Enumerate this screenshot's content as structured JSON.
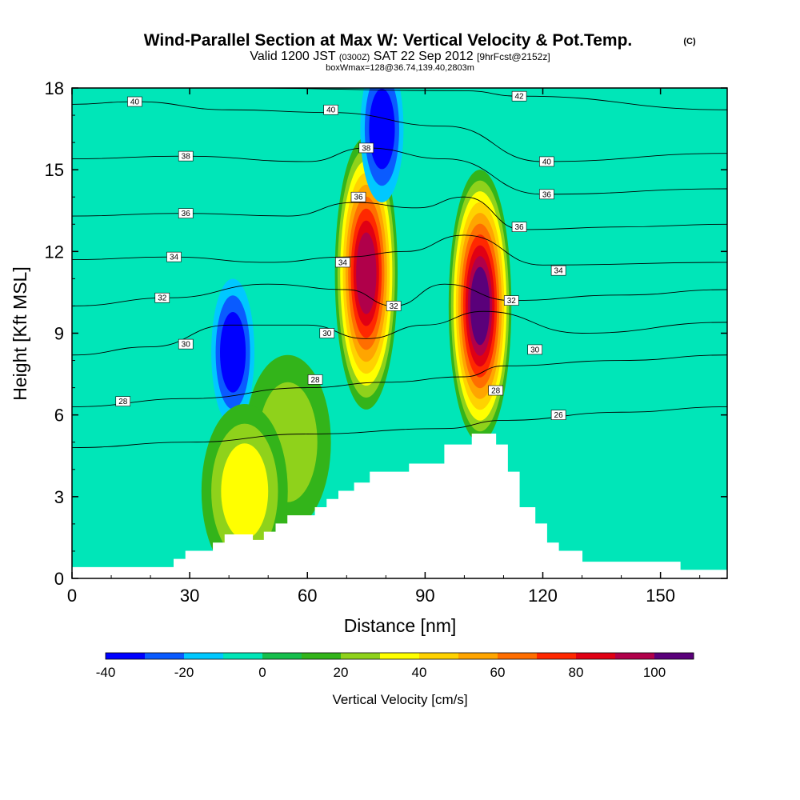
{
  "chart_data": {
    "type": "heatmap",
    "title": "Wind-Parallel Section at Max W: Vertical Velocity & Pot.Temp.",
    "title_mark": "(C)",
    "subtitle": {
      "valid": "Valid 1200 JST",
      "utc": "(0300Z)",
      "date": "SAT 22 Sep 2012",
      "forecast": "[9hrFcst@2152z]"
    },
    "box_info": "boxWmax=128@36.74,139.40,2803m",
    "xlabel": "Distance [nm]",
    "ylabel": "Height [Kft MSL]",
    "xlim": [
      0,
      167
    ],
    "ylim": [
      0,
      18
    ],
    "xticks": [
      0,
      30,
      60,
      90,
      120,
      150
    ],
    "yticks": [
      0,
      3,
      6,
      9,
      12,
      15,
      18
    ],
    "colorbar": {
      "label": "Vertical Velocity [cm/s]",
      "ticks": [
        -40,
        -20,
        0,
        20,
        40,
        60,
        80,
        100
      ],
      "levels": [
        -40,
        -30,
        -20,
        -10,
        0,
        10,
        20,
        30,
        40,
        50,
        60,
        70,
        80,
        90,
        100,
        110
      ],
      "colors": [
        "#0000ff",
        "#0a5bff",
        "#00c8ff",
        "#00e6b8",
        "#16be4c",
        "#33b41a",
        "#8fd21b",
        "#ffff00",
        "#ffd200",
        "#ffa500",
        "#ff6e00",
        "#ff2800",
        "#e00014",
        "#b0004a",
        "#5a007a"
      ]
    },
    "terrain": [
      [
        0,
        0.4
      ],
      [
        26,
        0.4
      ],
      [
        26,
        0.7
      ],
      [
        29,
        0.7
      ],
      [
        29,
        1.0
      ],
      [
        36,
        1.0
      ],
      [
        36,
        1.3
      ],
      [
        39,
        1.3
      ],
      [
        39,
        1.6
      ],
      [
        46,
        1.6
      ],
      [
        46,
        1.4
      ],
      [
        49,
        1.4
      ],
      [
        49,
        1.7
      ],
      [
        52,
        1.7
      ],
      [
        52,
        2.0
      ],
      [
        55,
        2.0
      ],
      [
        55,
        2.3
      ],
      [
        62,
        2.3
      ],
      [
        62,
        2.6
      ],
      [
        65,
        2.6
      ],
      [
        65,
        2.9
      ],
      [
        68,
        2.9
      ],
      [
        68,
        3.2
      ],
      [
        72,
        3.2
      ],
      [
        72,
        3.5
      ],
      [
        76,
        3.5
      ],
      [
        76,
        3.9
      ],
      [
        86,
        3.9
      ],
      [
        86,
        4.2
      ],
      [
        95,
        4.2
      ],
      [
        95,
        4.9
      ],
      [
        102,
        4.9
      ],
      [
        102,
        5.3
      ],
      [
        108,
        5.3
      ],
      [
        108,
        4.9
      ],
      [
        111,
        4.9
      ],
      [
        111,
        3.9
      ],
      [
        114,
        3.9
      ],
      [
        114,
        2.6
      ],
      [
        118,
        2.6
      ],
      [
        118,
        2.0
      ],
      [
        121,
        2.0
      ],
      [
        121,
        1.3
      ],
      [
        124,
        1.3
      ],
      [
        124,
        1.0
      ],
      [
        130,
        1.0
      ],
      [
        130,
        0.6
      ],
      [
        155,
        0.6
      ],
      [
        155,
        0.3
      ],
      [
        167,
        0.3
      ]
    ],
    "theta_contours": [
      {
        "label": "26",
        "points": [
          [
            0,
            4.8
          ],
          [
            30,
            5.0
          ],
          [
            60,
            5.3
          ],
          [
            95,
            5.5
          ],
          [
            110,
            5.8
          ],
          [
            140,
            6.1
          ],
          [
            167,
            6.3
          ]
        ],
        "label_at": [
          124,
          6.0
        ]
      },
      {
        "label": "28",
        "points": [
          [
            0,
            6.3
          ],
          [
            30,
            6.6
          ],
          [
            60,
            7.0
          ],
          [
            80,
            7.2
          ],
          [
            100,
            7.4
          ],
          [
            110,
            7.8
          ],
          [
            140,
            8.0
          ],
          [
            167,
            8.2
          ]
        ],
        "label_at": [
          13,
          6.5
        ]
      },
      {
        "label": "28",
        "points": [],
        "label_at": [
          62,
          7.3
        ]
      },
      {
        "label": "28",
        "points": [],
        "label_at": [
          108,
          6.9
        ]
      },
      {
        "label": "30",
        "points": [
          [
            0,
            8.2
          ],
          [
            20,
            8.5
          ],
          [
            40,
            9.3
          ],
          [
            60,
            9.3
          ],
          [
            75,
            8.8
          ],
          [
            90,
            9.3
          ],
          [
            105,
            9.8
          ],
          [
            130,
            9.0
          ],
          [
            167,
            9.4
          ]
        ],
        "label_at": [
          29,
          8.6
        ]
      },
      {
        "label": "30",
        "points": [],
        "label_at": [
          65,
          9.0
        ]
      },
      {
        "label": "30",
        "points": [],
        "label_at": [
          118,
          8.4
        ]
      },
      {
        "label": "32",
        "points": [
          [
            0,
            10.0
          ],
          [
            25,
            10.3
          ],
          [
            50,
            10.8
          ],
          [
            70,
            10.6
          ],
          [
            82,
            10.0
          ],
          [
            95,
            10.8
          ],
          [
            112,
            10.2
          ],
          [
            140,
            10.4
          ],
          [
            167,
            10.6
          ]
        ],
        "label_at": [
          23,
          10.3
        ]
      },
      {
        "label": "32",
        "points": [],
        "label_at": [
          82,
          10.0
        ]
      },
      {
        "label": "32",
        "points": [],
        "label_at": [
          112,
          10.2
        ]
      },
      {
        "label": "34",
        "points": [
          [
            0,
            11.7
          ],
          [
            25,
            11.8
          ],
          [
            50,
            11.6
          ],
          [
            70,
            11.8
          ],
          [
            85,
            12.0
          ],
          [
            100,
            12.6
          ],
          [
            120,
            11.5
          ],
          [
            167,
            11.6
          ]
        ],
        "label_at": [
          26,
          11.8
        ]
      },
      {
        "label": "34",
        "points": [],
        "label_at": [
          69,
          11.6
        ]
      },
      {
        "label": "34",
        "points": [],
        "label_at": [
          124,
          11.3
        ]
      },
      {
        "label": "36",
        "points": [
          [
            0,
            13.3
          ],
          [
            28,
            13.4
          ],
          [
            55,
            13.3
          ],
          [
            72,
            13.8
          ],
          [
            88,
            13.6
          ],
          [
            100,
            14.0
          ],
          [
            115,
            12.8
          ],
          [
            140,
            12.9
          ],
          [
            167,
            13.0
          ]
        ],
        "label_at": [
          29,
          13.4
        ]
      },
      {
        "label": "36",
        "points": [],
        "label_at": [
          73,
          14.0
        ]
      },
      {
        "label": "36",
        "points": [],
        "label_at": [
          114,
          12.9
        ]
      },
      {
        "label": "36",
        "points": [],
        "label_at": [
          121,
          14.1
        ]
      },
      {
        "label": "38",
        "points": [
          [
            0,
            15.4
          ],
          [
            28,
            15.5
          ],
          [
            60,
            15.3
          ],
          [
            75,
            15.8
          ],
          [
            95,
            15.4
          ],
          [
            120,
            14.1
          ],
          [
            167,
            14.3
          ]
        ],
        "label_at": [
          29,
          15.5
        ]
      },
      {
        "label": "38",
        "points": [],
        "label_at": [
          75,
          15.8
        ]
      },
      {
        "label": "40",
        "points": [
          [
            0,
            17.4
          ],
          [
            16,
            17.5
          ],
          [
            40,
            17.2
          ],
          [
            66,
            17.1
          ],
          [
            95,
            16.6
          ],
          [
            120,
            15.3
          ],
          [
            167,
            15.6
          ]
        ],
        "label_at": [
          16,
          17.5
        ]
      },
      {
        "label": "40",
        "points": [],
        "label_at": [
          66,
          17.2
        ]
      },
      {
        "label": "40",
        "points": [],
        "label_at": [
          121,
          15.3
        ]
      },
      {
        "label": "42",
        "points": [
          [
            0,
            18.0
          ],
          [
            40,
            18.0
          ],
          [
            100,
            17.9
          ],
          [
            114,
            17.7
          ],
          [
            167,
            17.2
          ]
        ],
        "label_at": [
          114,
          17.7
        ]
      }
    ],
    "w_features": [
      {
        "x": 75,
        "y": 11.2,
        "value": 95
      },
      {
        "x": 104,
        "y": 10.0,
        "value": 105
      },
      {
        "x": 41,
        "y": 8.3,
        "value": -35
      },
      {
        "x": 79,
        "y": 16.5,
        "value": -35
      },
      {
        "x": 55,
        "y": 5.0,
        "value": 25
      },
      {
        "x": 44,
        "y": 3.2,
        "value": 30
      }
    ]
  }
}
